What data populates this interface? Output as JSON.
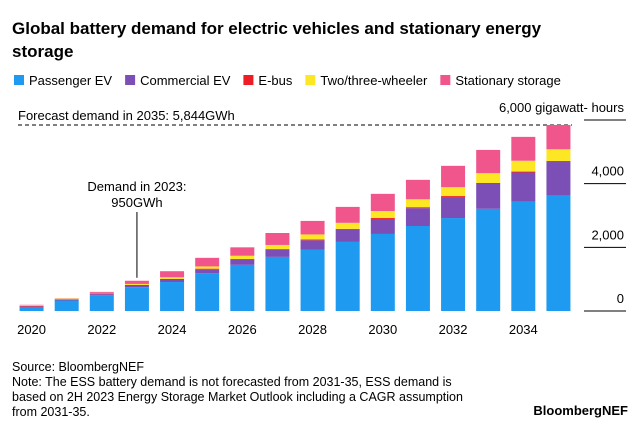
{
  "chart_data": {
    "type": "stacked_bar",
    "title": [
      "Global battery demand for electric vehicles and stationary energy",
      "storage"
    ],
    "x": [
      2020,
      2021,
      2022,
      2023,
      2024,
      2025,
      2026,
      2027,
      2028,
      2029,
      2030,
      2031,
      2032,
      2033,
      2034,
      2035
    ],
    "xlim": [
      2019.5,
      2035.5
    ],
    "xticks": [
      2020,
      2022,
      2024,
      2026,
      2028,
      2030,
      2032,
      2034
    ],
    "ylim": [
      0,
      6000
    ],
    "yticks": [
      0,
      {
        "value": 2000,
        "label": "2,000"
      },
      {
        "value": 4000,
        "label": "4,000"
      },
      {
        "value": 6000,
        "label": "6,000 gigawatt- hours"
      }
    ],
    "series": [
      {
        "name": "Passenger EV",
        "color": "#1e9bf0",
        "values": [
          130,
          330,
          500,
          750,
          910,
          1190,
          1450,
          1700,
          1920,
          2170,
          2420,
          2670,
          2920,
          3210,
          3430,
          3620
        ]
      },
      {
        "name": "Commercial EV",
        "color": "#7b4fb5",
        "values": [
          10,
          20,
          30,
          50,
          80,
          120,
          160,
          220,
          300,
          380,
          470,
          560,
          660,
          780,
          920,
          1060
        ]
      },
      {
        "name": "E-bus",
        "color": "#ee1c25",
        "values": [
          20,
          20,
          20,
          20,
          20,
          20,
          25,
          25,
          25,
          30,
          30,
          30,
          30,
          30,
          30,
          30
        ]
      },
      {
        "name": "Two/three-wheeler",
        "color": "#fde725",
        "values": [
          20,
          20,
          20,
          30,
          50,
          70,
          100,
          130,
          160,
          190,
          220,
          250,
          280,
          310,
          340,
          370
        ]
      },
      {
        "name": "Stationary storage",
        "color": "#f0568c",
        "values": [
          15,
          10,
          30,
          100,
          190,
          270,
          265,
          375,
          425,
          500,
          540,
          610,
          670,
          730,
          750,
          764
        ]
      }
    ],
    "annotations": [
      {
        "text": "Forecast demand in 2035: 5,844GWh",
        "y": 5844
      },
      {
        "lines": [
          "Demand in 2023:",
          "950GWh"
        ],
        "x": 2023,
        "y": 950
      }
    ],
    "source": "Source: BloombergNEF",
    "note": [
      "Note: The ESS battery demand is not forecasted from 2031-35, ESS demand is",
      "based on 2H 2023 Energy Storage Market Outlook including a CAGR assumption",
      "from 2031-35."
    ],
    "brand": "BloombergNEF"
  }
}
